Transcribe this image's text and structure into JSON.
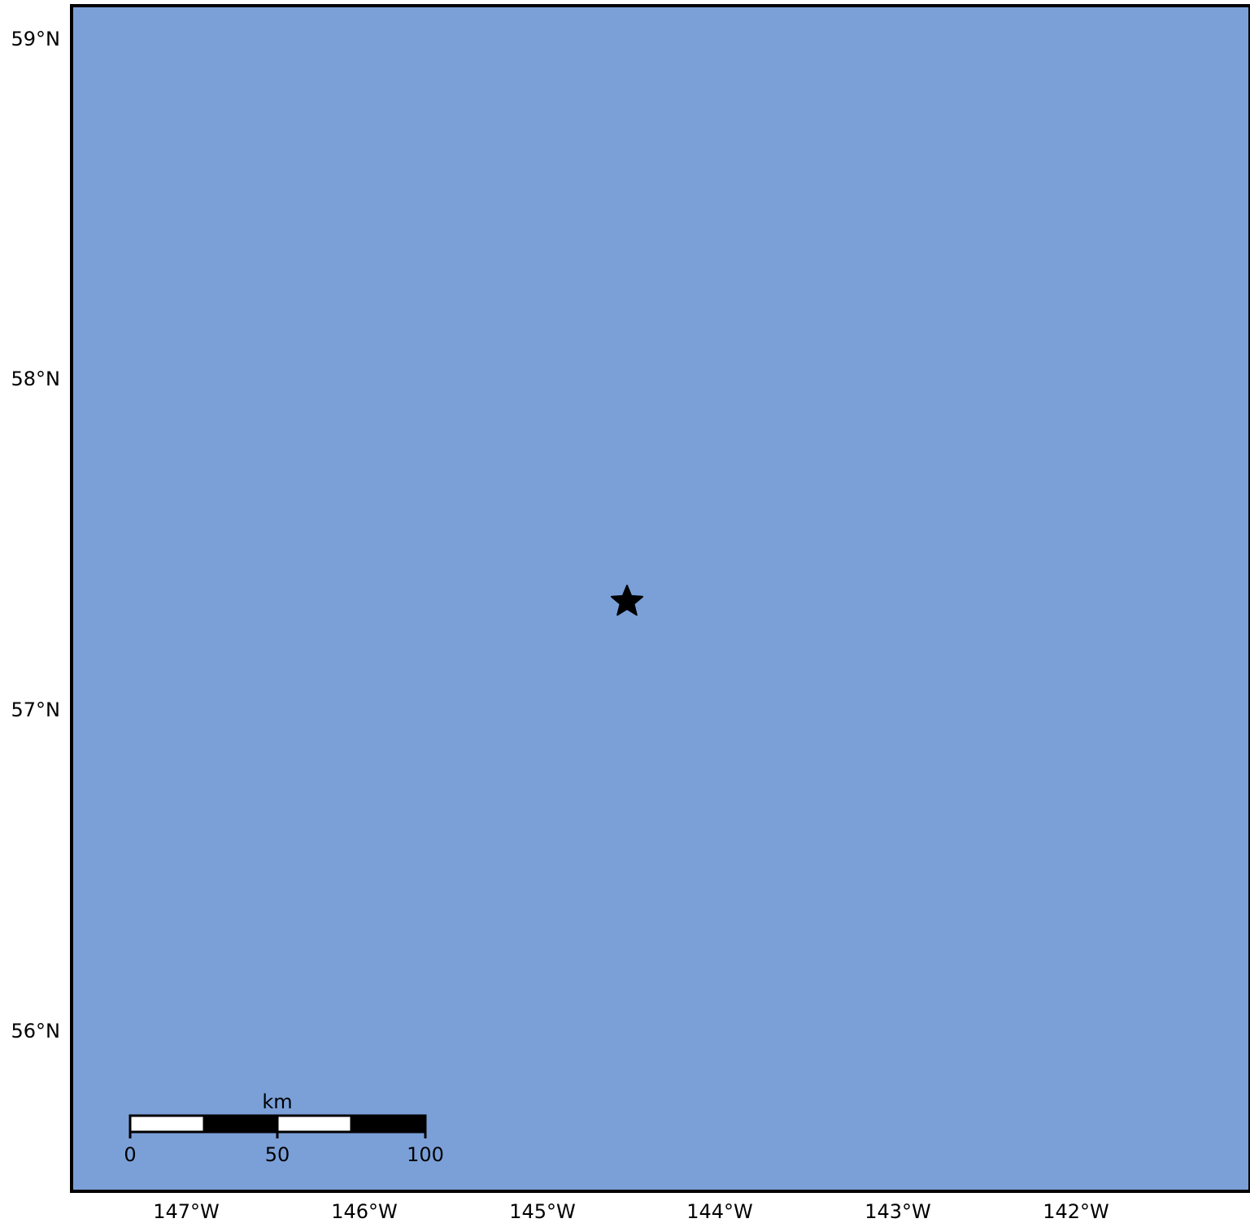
{
  "map": {
    "ocean_color": "#7ba0d8",
    "frame_color": "#000000",
    "lat_labels": [
      "59°N",
      "58°N",
      "57°N",
      "56°N"
    ],
    "lon_labels": [
      "147°W",
      "146°W",
      "145°W",
      "144°W",
      "143°W",
      "142°W"
    ],
    "marker": {
      "icon": "star-icon",
      "color": "#000000",
      "lon": -144.5,
      "lat": 57.33
    }
  },
  "scale_bar": {
    "unit": "km",
    "labels": [
      "0",
      "50",
      "100"
    ],
    "segments_km": 25,
    "total_km": 100
  }
}
